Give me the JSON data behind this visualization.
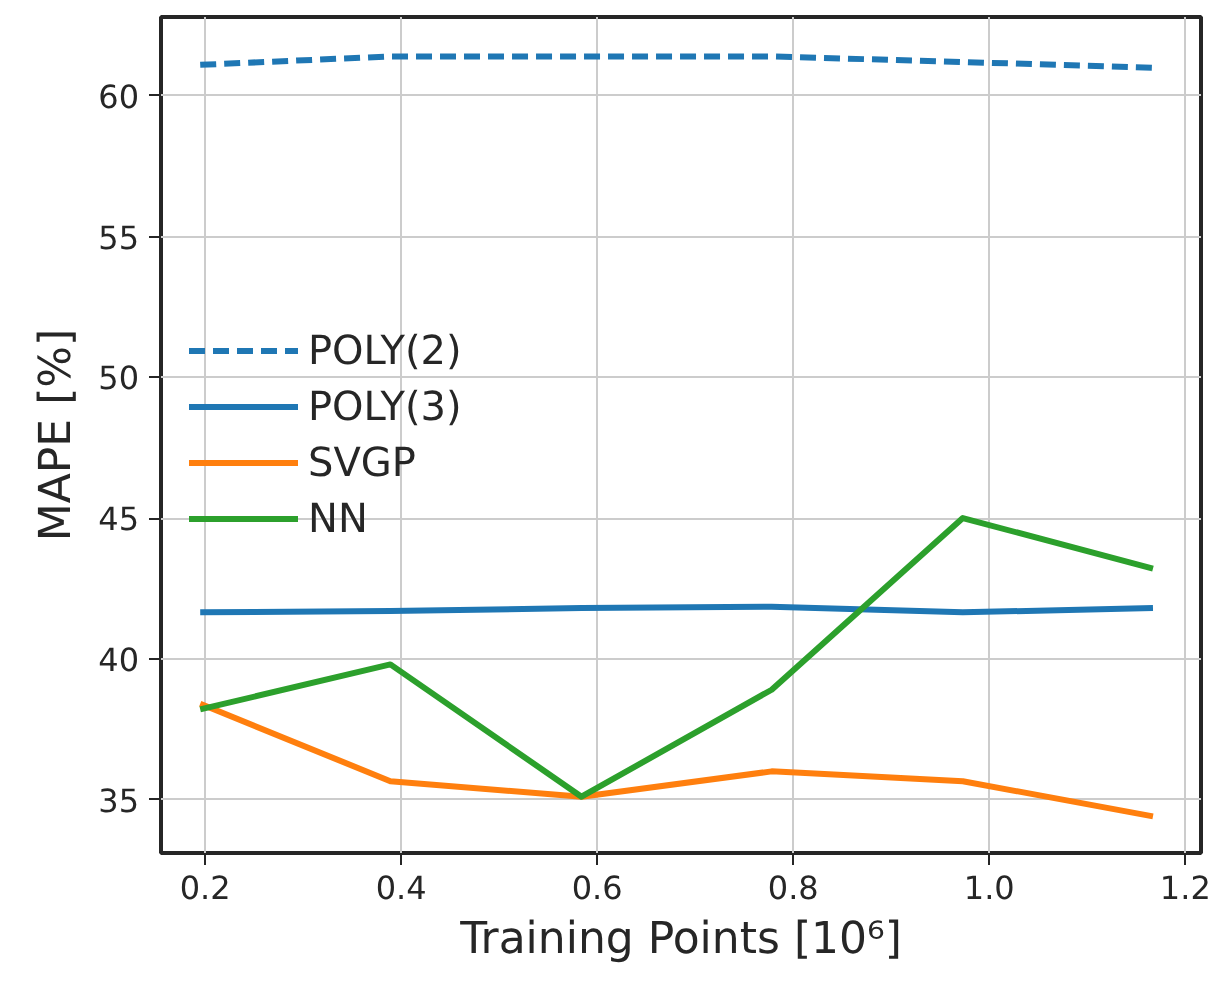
{
  "chart_data": {
    "type": "line",
    "xlabel": "Training Points [10⁶]",
    "ylabel": "MAPE [%]",
    "x": [
      0.195,
      0.389,
      0.584,
      0.778,
      0.973,
      1.167
    ],
    "series": [
      {
        "name": "POLY(2)",
        "color": "#1f77b4",
        "line_style": "dashed",
        "values": [
          61.1,
          61.4,
          61.4,
          61.4,
          61.2,
          61.0
        ]
      },
      {
        "name": "POLY(3)",
        "color": "#1f77b4",
        "values": [
          41.65,
          41.7,
          41.8,
          41.85,
          41.65,
          41.8
        ]
      },
      {
        "name": "SVGP",
        "color": "#ff7f0e",
        "values": [
          38.4,
          35.65,
          35.1,
          36.0,
          35.65,
          34.4
        ]
      },
      {
        "name": "NN",
        "color": "#2ca02c",
        "values": [
          38.2,
          39.8,
          35.1,
          38.9,
          45.0,
          43.2
        ]
      }
    ],
    "xlim": [
      0.155,
      1.216
    ],
    "ylim": [
      33.1,
      62.8
    ],
    "xticks": [
      0.2,
      0.4,
      0.6,
      0.8,
      {
        "value": 1,
        "label": "1.0"
      },
      1.2
    ],
    "yticks": [
      35,
      40,
      45,
      50,
      55,
      60
    ],
    "grid": true,
    "legend": "left",
    "line_style": "solid",
    "marker": "none"
  }
}
